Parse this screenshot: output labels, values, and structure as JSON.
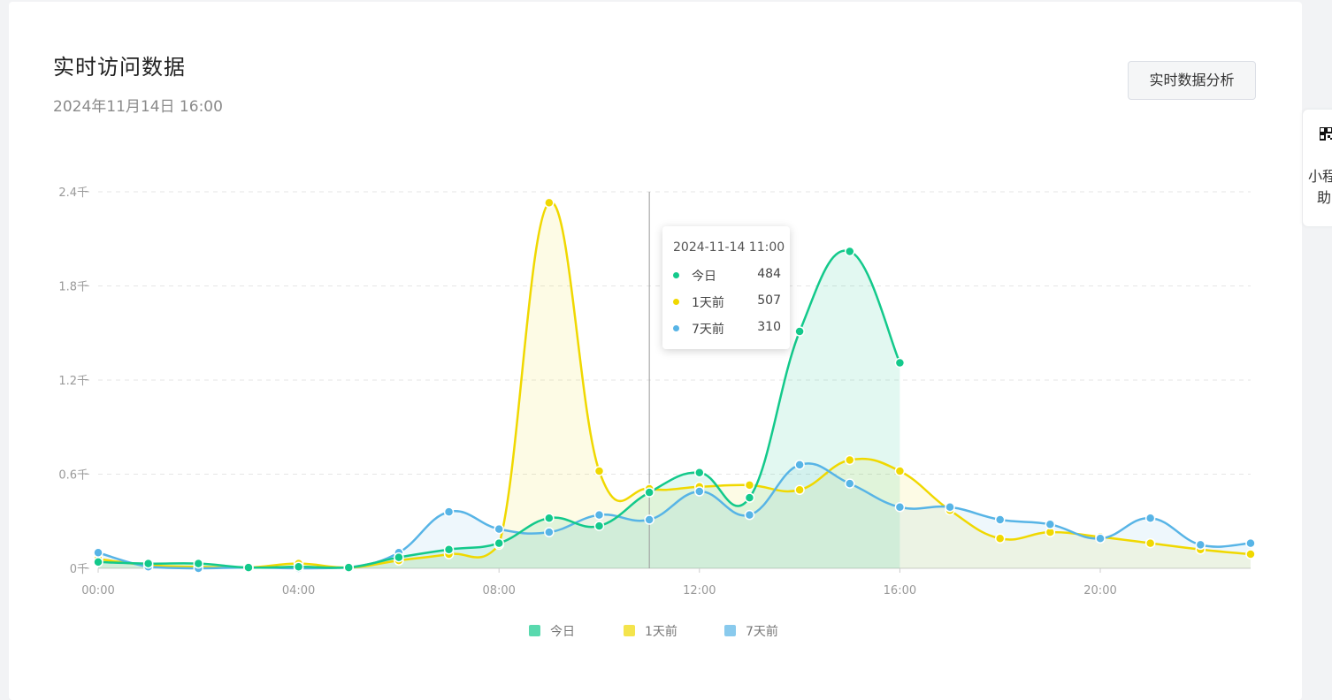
{
  "header": {
    "title": "实时访问数据",
    "datetime": "2024年11月14日 16:00",
    "analysis_button": "实时数据分析"
  },
  "side_panel": {
    "label_line1": "小程",
    "label_line2": "助"
  },
  "tooltip": {
    "title": "2024-11-14 11:00",
    "rows": [
      {
        "name": "今日",
        "value": "484"
      },
      {
        "name": "1天前",
        "value": "507"
      },
      {
        "name": "7天前",
        "value": "310"
      }
    ]
  },
  "colors": {
    "today": "#13c98b",
    "day1": "#f0d800",
    "day7": "#57b4e6"
  },
  "chart_data": {
    "type": "area",
    "x": [
      "00:00",
      "01:00",
      "02:00",
      "03:00",
      "04:00",
      "05:00",
      "06:00",
      "07:00",
      "08:00",
      "09:00",
      "10:00",
      "11:00",
      "12:00",
      "13:00",
      "14:00",
      "15:00",
      "16:00",
      "17:00",
      "18:00",
      "19:00",
      "20:00",
      "21:00",
      "22:00",
      "23:00"
    ],
    "x_tick_labels": [
      "00:00",
      "04:00",
      "08:00",
      "12:00",
      "16:00",
      "20:00"
    ],
    "y_tick_labels": [
      "0千",
      "0.6千",
      "1.2千",
      "1.8千",
      "2.4千"
    ],
    "ylim": [
      0,
      2400
    ],
    "grid": true,
    "legend_position": "bottom",
    "highlight_x": "11:00",
    "series": [
      {
        "name": "今日",
        "values": [
          40,
          30,
          30,
          5,
          10,
          5,
          70,
          120,
          160,
          320,
          270,
          484,
          610,
          450,
          1510,
          2020,
          1310,
          null,
          null,
          null,
          null,
          null,
          null,
          null
        ]
      },
      {
        "name": "1天前",
        "values": [
          60,
          20,
          10,
          5,
          30,
          5,
          50,
          90,
          150,
          2330,
          620,
          507,
          520,
          530,
          500,
          690,
          620,
          370,
          190,
          230,
          200,
          160,
          120,
          90
        ]
      },
      {
        "name": "7天前",
        "values": [
          100,
          10,
          0,
          5,
          0,
          5,
          100,
          360,
          250,
          230,
          340,
          310,
          490,
          340,
          660,
          540,
          390,
          390,
          310,
          280,
          190,
          320,
          150,
          160
        ]
      }
    ]
  }
}
